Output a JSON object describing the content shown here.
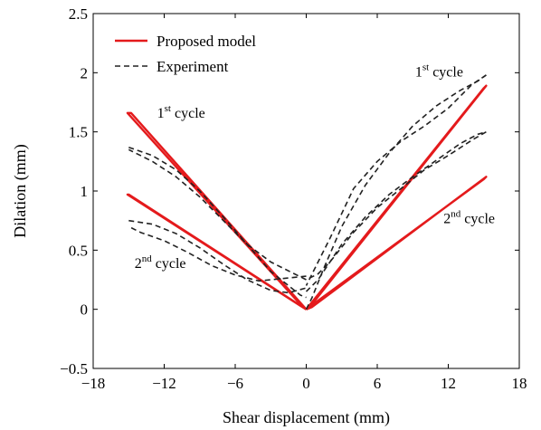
{
  "chart_data": {
    "type": "line",
    "xlabel": "Shear displacement (mm)",
    "ylabel": "Dilation (mm)",
    "xlim": [
      -18,
      18
    ],
    "ylim": [
      -0.5,
      2.5
    ],
    "xticks": [
      -18,
      -12,
      -6,
      0,
      6,
      12,
      18
    ],
    "yticks": [
      -0.5,
      0,
      0.5,
      1,
      1.5,
      2,
      2.5
    ],
    "xtick_labels": [
      "−18",
      "−12",
      "−6",
      "0",
      "6",
      "12",
      "18"
    ],
    "ytick_labels": [
      "−0.5",
      "0",
      "0.5",
      "1",
      "1.5",
      "2",
      "2.5"
    ],
    "grid": false,
    "legend_position": "top-left",
    "colors": {
      "model": "#e41a1c",
      "experiment": "#222222"
    },
    "series": [
      {
        "name": "Proposed model",
        "style": "solid",
        "segments": [
          {
            "x": [
              0,
              15,
              15.2,
              0.3,
              0
            ],
            "y": [
              0,
              1.87,
              1.89,
              0.02,
              0
            ]
          },
          {
            "x": [
              0,
              15,
              15.2,
              0.5,
              0
            ],
            "y": [
              0,
              1.1,
              1.12,
              0.02,
              0
            ]
          },
          {
            "x": [
              0,
              -14.8,
              -15.1,
              -0.3,
              0
            ],
            "y": [
              0,
              1.66,
              1.66,
              0.02,
              0
            ]
          },
          {
            "x": [
              0,
              -15,
              -15.1,
              -0.5,
              0
            ],
            "y": [
              0,
              0.97,
              0.97,
              0.03,
              0
            ]
          }
        ]
      },
      {
        "name": "Experiment",
        "style": "dashed",
        "segments": [
          {
            "x": [
              0,
              0.5,
              1.5,
              3,
              5,
              7,
              9,
              11,
              13,
              14.5,
              15.2
            ],
            "y": [
              0,
              0.1,
              0.35,
              0.7,
              1.05,
              1.32,
              1.55,
              1.72,
              1.85,
              1.93,
              1.98
            ]
          },
          {
            "x": [
              15.2,
              14,
              12,
              10,
              8,
              6,
              4,
              2,
              1,
              0
            ],
            "y": [
              1.98,
              1.9,
              1.7,
              1.55,
              1.42,
              1.25,
              1.02,
              0.6,
              0.4,
              0.2
            ]
          },
          {
            "x": [
              0,
              1,
              3,
              5,
              7,
              9,
              11,
              13,
              14.5,
              15.2
            ],
            "y": [
              0.15,
              0.25,
              0.55,
              0.78,
              0.97,
              1.12,
              1.26,
              1.4,
              1.48,
              1.5
            ]
          },
          {
            "x": [
              15.2,
              14,
              12,
              10,
              8,
              6,
              4,
              2,
              1,
              0
            ],
            "y": [
              1.5,
              1.43,
              1.3,
              1.18,
              1.02,
              0.86,
              0.65,
              0.4,
              0.3,
              0.25
            ]
          },
          {
            "x": [
              -15,
              -13,
              -11,
              -9,
              -7,
              -5,
              -3,
              -1.5,
              -0.5,
              0
            ],
            "y": [
              1.37,
              1.3,
              1.18,
              1.0,
              0.78,
              0.55,
              0.32,
              0.2,
              0.12,
              0.1
            ]
          },
          {
            "x": [
              0,
              -1,
              -3,
              -5,
              -7,
              -9,
              -11,
              -13,
              -15
            ],
            "y": [
              0.25,
              0.3,
              0.4,
              0.55,
              0.75,
              0.95,
              1.12,
              1.25,
              1.35
            ]
          },
          {
            "x": [
              -15,
              -13,
              -11,
              -9,
              -7,
              -5,
              -3,
              -1.5,
              0
            ],
            "y": [
              0.75,
              0.72,
              0.64,
              0.52,
              0.38,
              0.25,
              0.16,
              0.14,
              0.18
            ]
          },
          {
            "x": [
              0,
              -2,
              -4,
              -6,
              -8,
              -10,
              -12,
              -14,
              -15
            ],
            "y": [
              0.28,
              0.26,
              0.24,
              0.29,
              0.37,
              0.48,
              0.58,
              0.65,
              0.7
            ]
          }
        ]
      }
    ],
    "annotations": [
      {
        "base": "1",
        "sup": "st",
        "rest": " cycle",
        "x": -12.6,
        "y": 1.62
      },
      {
        "base": "2",
        "sup": "nd",
        "rest": " cycle",
        "x": -14.5,
        "y": 0.35
      },
      {
        "base": "1",
        "sup": "st",
        "rest": " cycle",
        "x": 9.2,
        "y": 1.97
      },
      {
        "base": "2",
        "sup": "nd",
        "rest": " cycle",
        "x": 11.6,
        "y": 0.73
      }
    ]
  }
}
